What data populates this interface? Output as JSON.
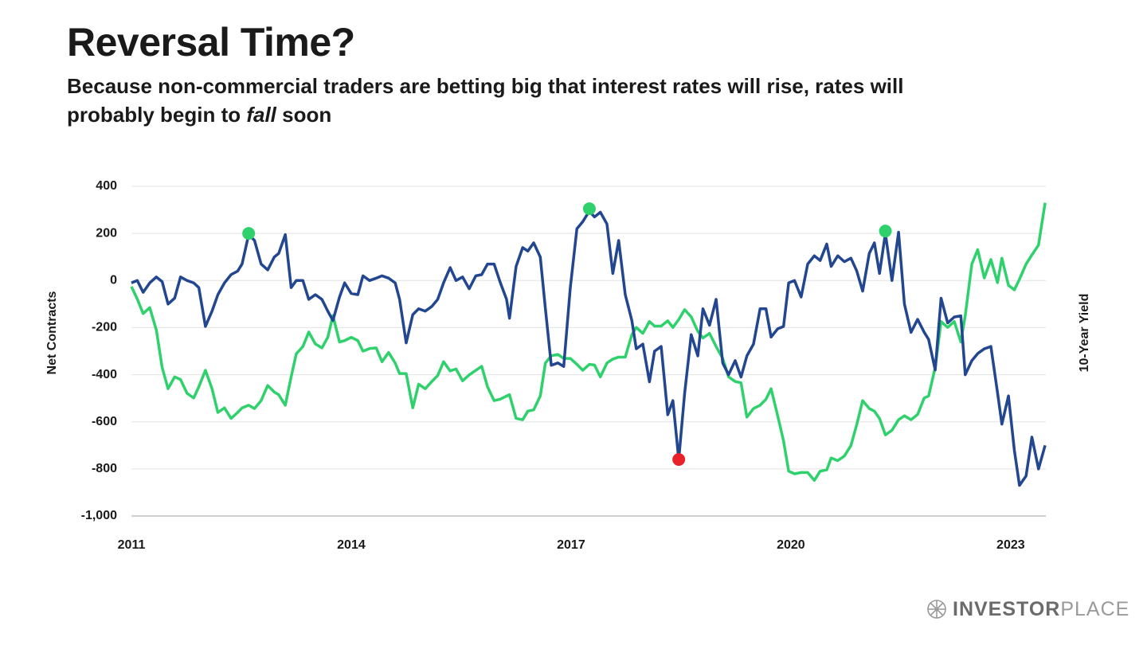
{
  "chart_data": {
    "type": "line",
    "title": "Reversal Time?",
    "subtitle": [
      "Because non-commercial traders are betting big that interest rates will rise, rates will probably begin to ",
      "fall",
      " soon"
    ],
    "ylabel": "Net Contracts",
    "y2label": "10-Year Yield",
    "logo": [
      "INVESTOR",
      "PLACE"
    ],
    "xlim": [
      2011,
      2023.48
    ],
    "xticks": [
      2011,
      2014,
      2017,
      2020,
      2023
    ],
    "ylim": [
      -1000,
      400
    ],
    "yticks": [
      400,
      200,
      0,
      -200,
      -400,
      -600,
      -800,
      {
        "value": -1000,
        "label": "-1,000"
      }
    ],
    "y2lim": [
      0,
      5
    ],
    "grid": true,
    "x": [
      2011.0,
      2011.08,
      2011.16,
      2011.25,
      2011.34,
      2011.42,
      2011.5,
      2011.59,
      2011.67,
      2011.76,
      2011.85,
      2011.92,
      2012.01,
      2012.1,
      2012.18,
      2012.27,
      2012.36,
      2012.45,
      2012.51,
      2012.6,
      2012.68,
      2012.77,
      2012.86,
      2012.95,
      2013.01,
      2013.1,
      2013.18,
      2013.25,
      2013.34,
      2013.42,
      2013.51,
      2013.6,
      2013.68,
      2013.75,
      2013.84,
      2013.91,
      2014.0,
      2014.09,
      2014.16,
      2014.25,
      2014.34,
      2014.42,
      2014.51,
      2014.6,
      2014.66,
      2014.75,
      2014.84,
      2014.92,
      2015.01,
      2015.1,
      2015.18,
      2015.26,
      2015.35,
      2015.43,
      2015.52,
      2015.61,
      2015.7,
      2015.78,
      2015.86,
      2015.95,
      2016.03,
      2016.12,
      2016.16,
      2016.25,
      2016.34,
      2016.41,
      2016.49,
      2016.58,
      2016.65,
      2016.73,
      2016.82,
      2016.9,
      2016.99,
      2017.08,
      2017.16,
      2017.25,
      2017.32,
      2017.4,
      2017.49,
      2017.57,
      2017.65,
      2017.74,
      2017.83,
      2017.89,
      2017.98,
      2018.07,
      2018.14,
      2018.23,
      2018.32,
      2018.39,
      2018.47,
      2018.55,
      2018.64,
      2018.73,
      2018.8,
      2018.89,
      2018.98,
      2019.07,
      2019.15,
      2019.24,
      2019.32,
      2019.4,
      2019.49,
      2019.58,
      2019.66,
      2019.73,
      2019.82,
      2019.9,
      2019.97,
      2020.05,
      2020.14,
      2020.23,
      2020.32,
      2020.4,
      2020.49,
      2020.55,
      2020.64,
      2020.73,
      2020.82,
      2020.9,
      2020.98,
      2021.07,
      2021.14,
      2021.21,
      2021.29,
      2021.38,
      2021.47,
      2021.55,
      2021.64,
      2021.73,
      2021.82,
      2021.88,
      2021.97,
      2022.05,
      2022.14,
      2022.23,
      2022.32,
      2022.38,
      2022.47,
      2022.55,
      2022.64,
      2022.73,
      2022.82,
      2022.88,
      2022.97,
      2023.05,
      2023.12,
      2023.21,
      2023.29,
      2023.38,
      2023.47
    ],
    "series": [
      {
        "name": "Net Contracts",
        "color": "#22468f",
        "values": [
          -10,
          0,
          -50,
          -10,
          15,
          -5,
          -100,
          -75,
          15,
          0,
          -10,
          -30,
          -195,
          -130,
          -60,
          -10,
          25,
          40,
          70,
          195,
          170,
          70,
          45,
          100,
          115,
          195,
          -30,
          0,
          0,
          -80,
          -60,
          -80,
          -130,
          -170,
          -70,
          -10,
          -55,
          -60,
          20,
          0,
          10,
          20,
          10,
          -10,
          -80,
          -265,
          -145,
          -120,
          -130,
          -110,
          -80,
          -10,
          55,
          0,
          15,
          -35,
          20,
          25,
          70,
          70,
          -5,
          -80,
          -160,
          60,
          140,
          125,
          160,
          100,
          -120,
          -360,
          -350,
          -365,
          -30,
          220,
          250,
          295,
          270,
          290,
          240,
          30,
          170,
          -60,
          -170,
          -290,
          -270,
          -430,
          -300,
          -280,
          -570,
          -510,
          -760,
          -480,
          -230,
          -320,
          -120,
          -190,
          -80,
          -350,
          -400,
          -340,
          -410,
          -320,
          -270,
          -120,
          -120,
          -240,
          -205,
          -195,
          -10,
          0,
          -70,
          70,
          105,
          85,
          155,
          60,
          105,
          80,
          95,
          40,
          -45,
          115,
          160,
          30,
          200,
          0,
          205,
          -100,
          -220,
          -165,
          -220,
          -250,
          -380,
          -75,
          -180,
          -155,
          -150,
          -400,
          -340,
          -310,
          -290,
          -280,
          -475,
          -610,
          -490,
          -720,
          -870,
          -830,
          -665,
          -800,
          -700
        ]
      },
      {
        "name": "10-Year Yield",
        "color": "#2fd16c",
        "axis": "y2",
        "values": [
          3.48,
          3.29,
          3.07,
          3.16,
          2.82,
          2.25,
          1.93,
          2.11,
          2.07,
          1.86,
          1.79,
          1.96,
          2.21,
          1.93,
          1.57,
          1.64,
          1.48,
          1.57,
          1.64,
          1.68,
          1.63,
          1.75,
          1.98,
          1.88,
          1.84,
          1.68,
          2.11,
          2.46,
          2.57,
          2.79,
          2.61,
          2.55,
          2.71,
          3.04,
          2.64,
          2.66,
          2.71,
          2.66,
          2.5,
          2.54,
          2.55,
          2.34,
          2.48,
          2.32,
          2.16,
          2.16,
          1.64,
          2.0,
          1.93,
          2.04,
          2.13,
          2.34,
          2.2,
          2.23,
          2.05,
          2.14,
          2.21,
          2.27,
          1.96,
          1.75,
          1.77,
          1.82,
          1.84,
          1.48,
          1.46,
          1.59,
          1.61,
          1.82,
          2.32,
          2.43,
          2.45,
          2.39,
          2.39,
          2.3,
          2.21,
          2.3,
          2.29,
          2.11,
          2.32,
          2.38,
          2.41,
          2.41,
          2.75,
          2.86,
          2.77,
          2.95,
          2.88,
          2.88,
          2.96,
          2.86,
          2.98,
          3.13,
          3.02,
          2.8,
          2.7,
          2.77,
          2.57,
          2.39,
          2.11,
          2.04,
          2.02,
          1.5,
          1.63,
          1.68,
          1.77,
          1.93,
          1.52,
          1.14,
          0.68,
          0.64,
          0.66,
          0.66,
          0.54,
          0.68,
          0.7,
          0.88,
          0.84,
          0.91,
          1.07,
          1.39,
          1.75,
          1.63,
          1.59,
          1.48,
          1.23,
          1.3,
          1.46,
          1.52,
          1.46,
          1.54,
          1.79,
          1.82,
          2.25,
          2.95,
          2.86,
          2.95,
          2.64,
          3.04,
          3.82,
          4.04,
          3.61,
          3.89,
          3.54,
          3.91,
          3.5,
          3.43,
          3.59,
          3.82,
          3.96,
          4.11,
          4.75
        ]
      }
    ],
    "highlights": [
      {
        "x": 2012.6,
        "value": 200,
        "color": "#2fd16c"
      },
      {
        "x": 2017.25,
        "value": 305,
        "color": "#2fd16c"
      },
      {
        "x": 2018.47,
        "value": -760,
        "color": "#e8212b"
      },
      {
        "x": 2021.29,
        "value": 210,
        "color": "#2fd16c"
      }
    ]
  }
}
